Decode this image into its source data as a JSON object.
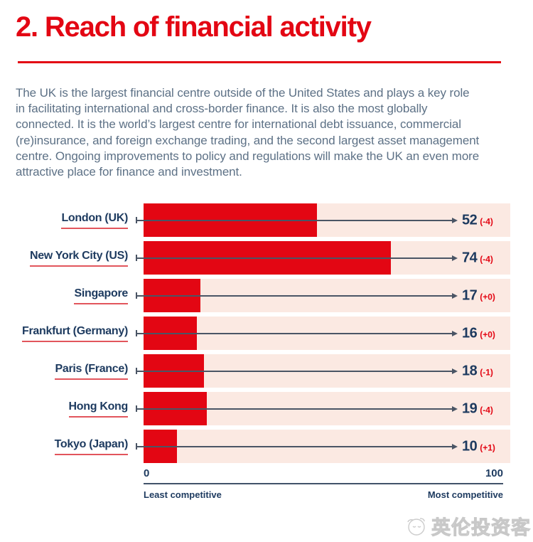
{
  "page": {
    "title": "2. Reach of financial activity",
    "intro": "The UK is the largest financial centre outside of the United States and plays a key role in facilitating international and cross-border finance. It is also the most globally connected. It is the world’s largest centre for international debt issuance, commercial (re)insurance, and foreign exchange trading, and the second largest asset management centre. Ongoing improvements to policy and regulations will make the UK an even more attractive place for finance and investment."
  },
  "colors": {
    "accent_red": "#e30613",
    "navy": "#1d3a5f",
    "track_pink": "#fbe9e2",
    "body_text": "#5d7186",
    "label_underline_red": "#e2555c",
    "connector_gray": "#4a5565",
    "watermark_gray": "#c8c8c8"
  },
  "chart_data": {
    "type": "bar",
    "orientation": "horizontal",
    "title": "",
    "xlabel": "",
    "ylabel": "",
    "xlim": [
      0,
      100
    ],
    "grid": false,
    "legend": false,
    "categories": [
      "London (UK)",
      "New York City (US)",
      "Singapore",
      "Frankfurt (Germany)",
      "Paris (France)",
      "Hong Kong",
      "Tokyo (Japan)"
    ],
    "values": [
      52,
      74,
      17,
      16,
      18,
      19,
      10
    ],
    "changes": [
      "(-4)",
      "(-4)",
      "(+0)",
      "(+0)",
      "(-1)",
      "(-4)",
      "(+1)"
    ],
    "rows": [
      {
        "label": "London (UK)",
        "value": 52,
        "change": "(-4)"
      },
      {
        "label": "New York City (US)",
        "value": 74,
        "change": "(-4)"
      },
      {
        "label": "Singapore",
        "value": 17,
        "change": "(+0)"
      },
      {
        "label": "Frankfurt (Germany)",
        "value": 16,
        "change": "(+0)"
      },
      {
        "label": "Paris (France)",
        "value": 18,
        "change": "(-1)"
      },
      {
        "label": "Hong Kong",
        "value": 19,
        "change": "(-4)"
      },
      {
        "label": "Tokyo (Japan)",
        "value": 10,
        "change": "(+1)"
      }
    ],
    "axis": {
      "min_label": "0",
      "max_label": "100",
      "min_caption": "Least competitive",
      "max_caption": "Most competitive"
    }
  },
  "watermark": {
    "text": "英伦投资客"
  }
}
